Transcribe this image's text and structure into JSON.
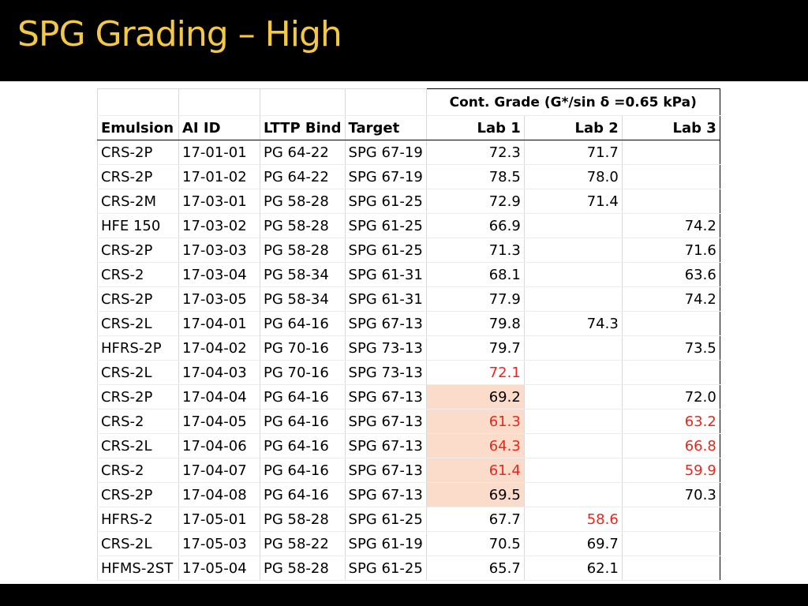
{
  "slide": {
    "title": "SPG Grading – High"
  },
  "table": {
    "group_header": "Cont. Grade (G*/sin δ =0.65 kPa)",
    "columns": [
      "Emulsion",
      "AI ID",
      "LTTP Bind",
      "Target",
      "Lab 1",
      "Lab 2",
      "Lab 3"
    ],
    "highlight_color": "#fbdccb",
    "flag_color": "#e8271d",
    "rows": [
      {
        "emulsion": "CRS-2P",
        "ai_id": "17-01-01",
        "lttp_bind": "PG 64-22",
        "target": "SPG 67-19",
        "lab1": "72.3",
        "lab2": "71.7",
        "lab3": ""
      },
      {
        "emulsion": "CRS-2P",
        "ai_id": "17-01-02",
        "lttp_bind": "PG 64-22",
        "target": "SPG 67-19",
        "lab1": "78.5",
        "lab2": "78.0",
        "lab3": ""
      },
      {
        "emulsion": "CRS-2M",
        "ai_id": "17-03-01",
        "lttp_bind": "PG 58-28",
        "target": "SPG 61-25",
        "lab1": "72.9",
        "lab2": "71.4",
        "lab3": ""
      },
      {
        "emulsion": "HFE 150",
        "ai_id": "17-03-02",
        "lttp_bind": "PG 58-28",
        "target": "SPG 61-25",
        "lab1": "66.9",
        "lab2": "",
        "lab3": "74.2"
      },
      {
        "emulsion": "CRS-2P",
        "ai_id": "17-03-03",
        "lttp_bind": "PG 58-28",
        "target": "SPG 61-25",
        "lab1": "71.3",
        "lab2": "",
        "lab3": "71.6"
      },
      {
        "emulsion": "CRS-2",
        "ai_id": "17-03-04",
        "lttp_bind": "PG 58-34",
        "target": "SPG 61-31",
        "lab1": "68.1",
        "lab2": "",
        "lab3": "63.6"
      },
      {
        "emulsion": "CRS-2P",
        "ai_id": "17-03-05",
        "lttp_bind": "PG 58-34",
        "target": "SPG 61-31",
        "lab1": "77.9",
        "lab2": "",
        "lab3": "74.2"
      },
      {
        "emulsion": "CRS-2L",
        "ai_id": "17-04-01",
        "lttp_bind": "PG 64-16",
        "target": "SPG 67-13",
        "lab1": "79.8",
        "lab2": "74.3",
        "lab3": ""
      },
      {
        "emulsion": "HFRS-2P",
        "ai_id": "17-04-02",
        "lttp_bind": "PG 70-16",
        "target": "SPG 73-13",
        "lab1": "79.7",
        "lab2": "",
        "lab3": "73.5"
      },
      {
        "emulsion": "CRS-2L",
        "ai_id": "17-04-03",
        "lttp_bind": "PG 70-16",
        "target": "SPG 73-13",
        "lab1": "72.1",
        "lab2": "",
        "lab3": ""
      },
      {
        "emulsion": "CRS-2P",
        "ai_id": "17-04-04",
        "lttp_bind": "PG 64-16",
        "target": "SPG 67-13",
        "lab1": "69.2",
        "lab2": "",
        "lab3": "72.0"
      },
      {
        "emulsion": "CRS-2",
        "ai_id": "17-04-05",
        "lttp_bind": "PG 64-16",
        "target": "SPG 67-13",
        "lab1": "61.3",
        "lab2": "",
        "lab3": "63.2"
      },
      {
        "emulsion": "CRS-2L",
        "ai_id": "17-04-06",
        "lttp_bind": "PG 64-16",
        "target": "SPG 67-13",
        "lab1": "64.3",
        "lab2": "",
        "lab3": "66.8"
      },
      {
        "emulsion": "CRS-2",
        "ai_id": "17-04-07",
        "lttp_bind": "PG 64-16",
        "target": "SPG 67-13",
        "lab1": "61.4",
        "lab2": "",
        "lab3": "59.9"
      },
      {
        "emulsion": "CRS-2P",
        "ai_id": "17-04-08",
        "lttp_bind": "PG 64-16",
        "target": "SPG 67-13",
        "lab1": "69.5",
        "lab2": "",
        "lab3": "70.3"
      },
      {
        "emulsion": "HFRS-2",
        "ai_id": "17-05-01",
        "lttp_bind": "PG 58-28",
        "target": "SPG 61-25",
        "lab1": "67.7",
        "lab2": "58.6",
        "lab3": ""
      },
      {
        "emulsion": "CRS-2L",
        "ai_id": "17-05-03",
        "lttp_bind": "PG 58-22",
        "target": "SPG 61-19",
        "lab1": "70.5",
        "lab2": "69.7",
        "lab3": ""
      },
      {
        "emulsion": "HFMS-2ST",
        "ai_id": "17-05-04",
        "lttp_bind": "PG 58-28",
        "target": "SPG 61-25",
        "lab1": "65.7",
        "lab2": "62.1",
        "lab3": ""
      }
    ],
    "red_cells": [
      [
        9,
        "lab1"
      ],
      [
        11,
        "lab1"
      ],
      [
        12,
        "lab1"
      ],
      [
        13,
        "lab1"
      ],
      [
        11,
        "lab3"
      ],
      [
        12,
        "lab3"
      ],
      [
        13,
        "lab3"
      ],
      [
        15,
        "lab2"
      ]
    ],
    "shaded_rows_lab1": [
      10,
      11,
      12,
      13,
      14
    ]
  }
}
